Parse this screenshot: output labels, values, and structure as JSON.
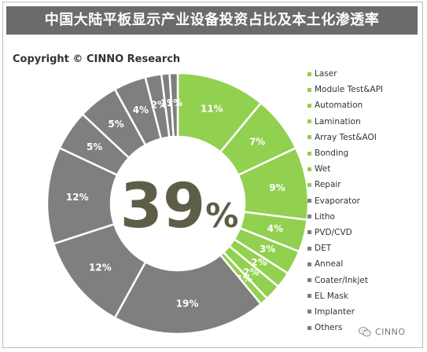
{
  "title": "中国大陆平板显示产业设备投资占比及本土化渗透率",
  "copyright": "Copyright © CINNO Research",
  "watermark": "CINNO",
  "colors": {
    "localized": "#92d050",
    "non_localized": "#7f7f7f",
    "title_bar": "#6b6b6b",
    "background": "#ffffff"
  },
  "chart_data": {
    "type": "pie",
    "subtype": "donut",
    "title": "中国大陆平板显示产业设备投资占比及本土化渗透率",
    "center_label": {
      "number": "39",
      "unit": "%"
    },
    "legend_position": "right",
    "slices": [
      {
        "name": "Laser",
        "value": 11,
        "label": "11%",
        "localized": true
      },
      {
        "name": "Module Test&API",
        "value": 7,
        "label": "7%",
        "localized": true
      },
      {
        "name": "Automation",
        "value": 9,
        "label": "9%",
        "localized": true
      },
      {
        "name": "Lamination",
        "value": 4,
        "label": "4%",
        "localized": true
      },
      {
        "name": "Array Test&AOI",
        "value": 3,
        "label": "3%",
        "localized": true
      },
      {
        "name": "Bonding",
        "value": 2,
        "label": "2%",
        "localized": true
      },
      {
        "name": "Wet",
        "value": 2,
        "label": "2%",
        "localized": true
      },
      {
        "name": "Repair",
        "value": 1,
        "label": "1%",
        "localized": true
      },
      {
        "name": "Evaporator",
        "value": 19,
        "label": "19%",
        "localized": false
      },
      {
        "name": "Litho",
        "value": 12,
        "label": "12%",
        "localized": false
      },
      {
        "name": "PVD/CVD",
        "value": 12,
        "label": "12%",
        "localized": false
      },
      {
        "name": "DET",
        "value": 5,
        "label": "5%",
        "localized": false
      },
      {
        "name": "Anneal",
        "value": 5,
        "label": "5%",
        "localized": false
      },
      {
        "name": "Coater/Inkjet",
        "value": 4,
        "label": "4%",
        "localized": false
      },
      {
        "name": "EL Mask",
        "value": 2,
        "label": "2%",
        "localized": false
      },
      {
        "name": "Implanter",
        "value": 1,
        "label": "1%",
        "localized": false
      },
      {
        "name": "Others",
        "value": 1,
        "label": "1%",
        "localized": false
      }
    ],
    "legend": [
      "Laser",
      "Module Test&API",
      "Automation",
      "Lamination",
      "Array Test&AOI",
      "Bonding",
      "Wet",
      "Repair",
      "Evaporator",
      "Litho",
      "PVD/CVD",
      "DET",
      "Anneal",
      "Coater/Inkjet",
      "EL Mask",
      "Implanter",
      "Others"
    ]
  }
}
